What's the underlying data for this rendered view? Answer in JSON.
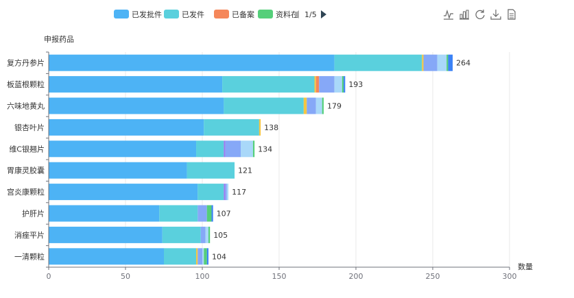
{
  "legend": {
    "items": [
      {
        "label": "已发批件",
        "color": "#4db3f5"
      },
      {
        "label": "已发件",
        "color": "#5ad0dd"
      },
      {
        "label": "已备案",
        "color": "#f5875a"
      },
      {
        "label": "资料在",
        "color": "#55cf7a"
      }
    ],
    "page": "1/5"
  },
  "toolbar": {
    "icons": [
      "line-chart-icon",
      "bar-chart-icon",
      "restore-icon",
      "download-icon",
      "data-view-icon"
    ]
  },
  "chart_data": {
    "type": "bar",
    "orientation": "horizontal",
    "stacked": true,
    "ylabel": "申报药品",
    "xlabel": "数量",
    "xlim": [
      0,
      300
    ],
    "xticks": [
      0,
      50,
      100,
      150,
      200,
      250,
      300
    ],
    "grid": true,
    "legend_position": "top-center",
    "categories": [
      "复方丹参片",
      "板蓝根颗粒",
      "六味地黄丸",
      "银杏叶片",
      "维C银翘片",
      "胃康灵胶囊",
      "宫炎康颗粒",
      "护肝片",
      "消痤平片",
      "一清颗粒"
    ],
    "totals": [
      264,
      193,
      179,
      138,
      134,
      121,
      117,
      107,
      105,
      104
    ],
    "series": [
      {
        "name": "已发批件",
        "color": "#4db3f5",
        "values": [
          186,
          113,
          114,
          101,
          96,
          90,
          97,
          72,
          74,
          75
        ]
      },
      {
        "name": "已发件",
        "color": "#5ad0dd",
        "values": [
          57,
          60,
          52,
          36,
          18,
          31,
          17,
          25,
          25,
          21
        ]
      },
      {
        "name": "",
        "color": "#f5c542",
        "values": [
          1,
          1,
          2,
          1,
          0,
          0,
          0,
          0,
          0,
          1
        ]
      },
      {
        "name": "已备案",
        "color": "#f5875a",
        "values": [
          0,
          2,
          0,
          0,
          0,
          0,
          0,
          0,
          0,
          0
        ]
      },
      {
        "name": "",
        "color": "#9b7cf0",
        "values": [
          0,
          0,
          0,
          0,
          1,
          0,
          1,
          0,
          0,
          0
        ]
      },
      {
        "name": "",
        "color": "#86a8f7",
        "values": [
          9,
          10,
          6,
          0,
          10,
          0,
          1,
          6,
          3,
          3
        ]
      },
      {
        "name": "",
        "color": "#a9d8f9",
        "values": [
          6,
          5,
          4,
          0,
          8,
          0,
          1,
          0,
          2,
          1
        ]
      },
      {
        "name": "资料在",
        "color": "#55cf7a",
        "values": [
          1,
          1,
          1,
          0,
          1,
          0,
          0,
          3,
          1,
          2
        ]
      },
      {
        "name": "",
        "color": "#3b82f6",
        "values": [
          3,
          1,
          0,
          0,
          0,
          0,
          0,
          1,
          0,
          1
        ]
      }
    ]
  }
}
